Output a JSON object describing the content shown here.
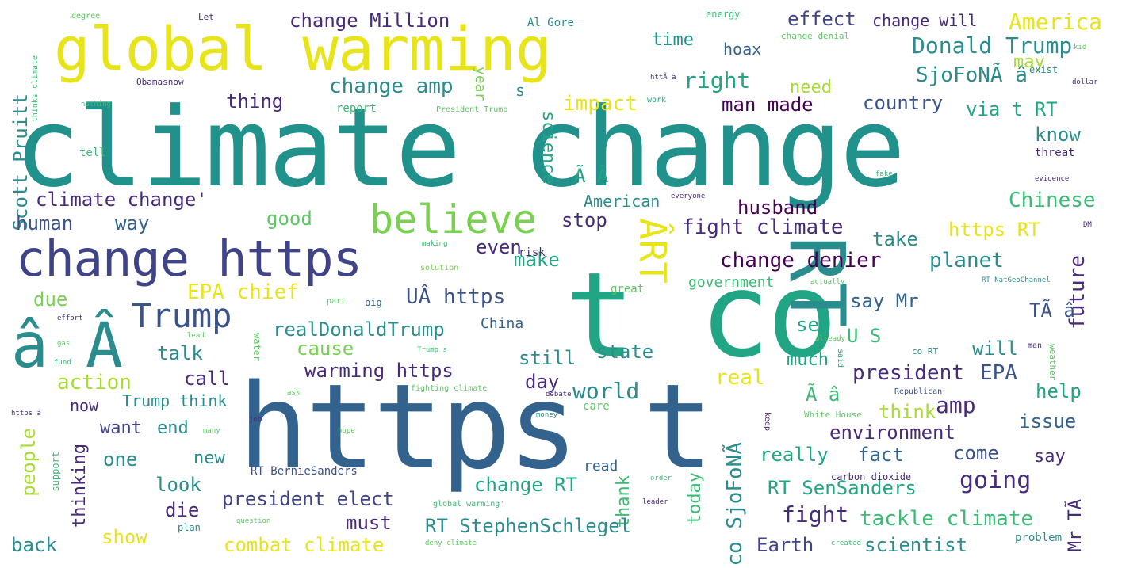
{
  "palette": {
    "yellow": "#e8e41a",
    "lime": "#a8db34",
    "green": "#5cc863",
    "mint": "#3bbb75",
    "teal": "#21a585",
    "tealblue": "#2b8c8d",
    "blue": "#33638d",
    "indigo": "#404387",
    "purple": "#472a7a",
    "dark": "#440154"
  },
  "words": [
    {
      "t": "climate change"
    },
    {
      "t": "global warming"
    },
    {
      "t": "https t"
    },
    {
      "t": "t co"
    },
    {
      "t": "change https"
    },
    {
      "t": "RT"
    },
    {
      "t": "ÂRT"
    },
    {
      "t": "believe"
    },
    {
      "t": "â Â"
    },
    {
      "t": "Trump"
    },
    {
      "t": "change Million"
    },
    {
      "t": "Al Gore"
    },
    {
      "t": "effect"
    },
    {
      "t": "change will"
    },
    {
      "t": "America"
    },
    {
      "t": "Donald Trump"
    },
    {
      "t": "change amp"
    },
    {
      "t": "SjoFoNÃ â"
    },
    {
      "t": "right"
    },
    {
      "t": "man made"
    },
    {
      "t": "country"
    },
    {
      "t": "via t RT"
    },
    {
      "t": "impact"
    },
    {
      "t": "thing"
    },
    {
      "t": "hoax"
    },
    {
      "t": "need"
    },
    {
      "t": "time"
    },
    {
      "t": "may"
    },
    {
      "t": "s"
    },
    {
      "t": "science"
    },
    {
      "t": "year"
    },
    {
      "t": "Scott Pruitt"
    },
    {
      "t": "climate change'"
    },
    {
      "t": "human"
    },
    {
      "t": "way"
    },
    {
      "t": "good"
    },
    {
      "t": "stop"
    },
    {
      "t": "fight climate"
    },
    {
      "t": "husband"
    },
    {
      "t": "Chinese"
    },
    {
      "t": "https RT"
    },
    {
      "t": "Ã Â"
    },
    {
      "t": "American"
    },
    {
      "t": "know"
    },
    {
      "t": "EPA chief"
    },
    {
      "t": "UÂ https"
    },
    {
      "t": "realDonaldTrump"
    },
    {
      "t": "China"
    },
    {
      "t": "change denier"
    },
    {
      "t": "planet"
    },
    {
      "t": "future"
    },
    {
      "t": "take"
    },
    {
      "t": "even"
    },
    {
      "t": "make"
    },
    {
      "t": "say Mr"
    },
    {
      "t": "government"
    },
    {
      "t": "TÃ â"
    },
    {
      "t": "due"
    },
    {
      "t": "cause"
    },
    {
      "t": "talk"
    },
    {
      "t": "state"
    },
    {
      "t": "see"
    },
    {
      "t": "U S"
    },
    {
      "t": "will"
    },
    {
      "t": "call"
    },
    {
      "t": "still"
    },
    {
      "t": "warming https"
    },
    {
      "t": "real"
    },
    {
      "t": "president"
    },
    {
      "t": "EPA"
    },
    {
      "t": "much"
    },
    {
      "t": "day"
    },
    {
      "t": "action"
    },
    {
      "t": "world"
    },
    {
      "t": "amp"
    },
    {
      "t": "Ã â"
    },
    {
      "t": "help"
    },
    {
      "t": "Trump think"
    },
    {
      "t": "now"
    },
    {
      "t": "think"
    },
    {
      "t": "want"
    },
    {
      "t": "end"
    },
    {
      "t": "issue"
    },
    {
      "t": "environment"
    },
    {
      "t": "people"
    },
    {
      "t": "thinking"
    },
    {
      "t": "one"
    },
    {
      "t": "new"
    },
    {
      "t": "really"
    },
    {
      "t": "fact"
    },
    {
      "t": "come"
    },
    {
      "t": "say"
    },
    {
      "t": "look"
    },
    {
      "t": "read"
    },
    {
      "t": "co SjoFoNÃ"
    },
    {
      "t": "going"
    },
    {
      "t": "RT BernieSanders"
    },
    {
      "t": "change RT"
    },
    {
      "t": "thank"
    },
    {
      "t": "RT SenSanders"
    },
    {
      "t": "Mr TÃ"
    },
    {
      "t": "die"
    },
    {
      "t": "president elect"
    },
    {
      "t": "today"
    },
    {
      "t": "fight"
    },
    {
      "t": "must"
    },
    {
      "t": "RT StephenSchlegel"
    },
    {
      "t": "tackle climate"
    },
    {
      "t": "show"
    },
    {
      "t": "back"
    },
    {
      "t": "combat climate"
    },
    {
      "t": "Earth"
    },
    {
      "t": "scientist"
    },
    {
      "t": "energy"
    },
    {
      "t": "change denial"
    },
    {
      "t": "exist"
    },
    {
      "t": "report"
    },
    {
      "t": "President Trump"
    },
    {
      "t": "work"
    },
    {
      "t": "problem"
    },
    {
      "t": "threat"
    },
    {
      "t": "tell"
    },
    {
      "t": "risk"
    },
    {
      "t": "great"
    },
    {
      "t": "big"
    },
    {
      "t": "part"
    },
    {
      "t": "solution"
    },
    {
      "t": "water"
    },
    {
      "t": "support"
    },
    {
      "t": "plan"
    },
    {
      "t": "care"
    },
    {
      "t": "keep"
    },
    {
      "t": "White House"
    },
    {
      "t": "carbon dioxide"
    },
    {
      "t": "global warming'"
    },
    {
      "t": "fighting climate"
    },
    {
      "t": "Republican"
    },
    {
      "t": "said"
    },
    {
      "t": "co RT"
    },
    {
      "t": "man"
    },
    {
      "t": "weather"
    },
    {
      "t": "evidence"
    },
    {
      "t": "Obamasnow"
    },
    {
      "t": "thinks climate"
    },
    {
      "t": "degree"
    },
    {
      "t": "Let"
    },
    {
      "t": "nothing"
    },
    {
      "t": "actually"
    },
    {
      "t": "RT NatGeoChannel"
    },
    {
      "t": "leader"
    },
    {
      "t": "question"
    },
    {
      "t": "created"
    },
    {
      "t": "deny climate"
    },
    {
      "t": "order"
    },
    {
      "t": "debate"
    },
    {
      "t": "already"
    },
    {
      "t": "money"
    },
    {
      "t": "everyone"
    },
    {
      "t": "making"
    },
    {
      "t": "ask"
    },
    {
      "t": "kid"
    },
    {
      "t": "dollar"
    },
    {
      "t": "hope"
    },
    {
      "t": "job"
    },
    {
      "t": "Trump s"
    },
    {
      "t": "effort"
    },
    {
      "t": "lead"
    },
    {
      "t": "fund"
    },
    {
      "t": "gas"
    },
    {
      "t": "DM"
    },
    {
      "t": "httÃ â"
    },
    {
      "t": "https â"
    },
    {
      "t": "many"
    },
    {
      "t": "fake"
    }
  ]
}
